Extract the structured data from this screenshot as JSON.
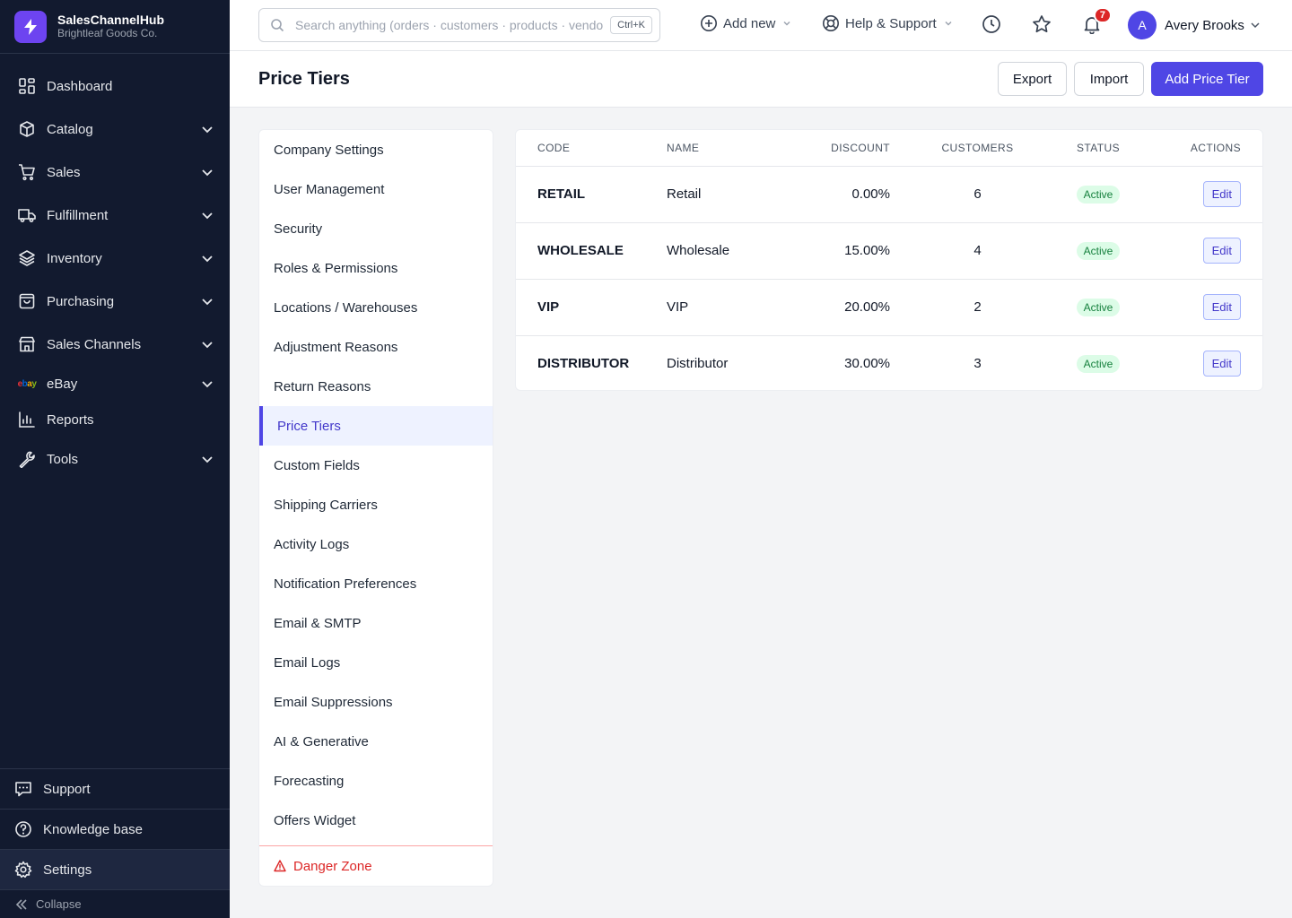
{
  "brand": {
    "name": "SalesChannelHub",
    "company": "Brightleaf Goods Co."
  },
  "sidebar": {
    "items": [
      {
        "label": "Dashboard",
        "icon": "dashboard-icon"
      },
      {
        "label": "Catalog",
        "icon": "box-icon"
      },
      {
        "label": "Sales",
        "icon": "cart-icon"
      },
      {
        "label": "Fulfillment",
        "icon": "truck-icon"
      },
      {
        "label": "Inventory",
        "icon": "layers-icon"
      },
      {
        "label": "Purchasing",
        "icon": "bag-icon"
      },
      {
        "label": "Sales Channels",
        "icon": "store-icon"
      },
      {
        "label": "eBay",
        "icon": "ebay-logo",
        "logo_text": [
          "e",
          "b",
          "a",
          "y"
        ]
      },
      {
        "label": "Reports",
        "icon": "bar-chart-icon"
      },
      {
        "label": "Tools",
        "icon": "wrench-icon"
      }
    ],
    "bottom": {
      "support": "Support",
      "knowledge_base": "Knowledge base",
      "settings": "Settings",
      "collapse": "Collapse"
    }
  },
  "topbar": {
    "search_placeholder": "Search anything (orders · customers · products · vendors)",
    "shortcut": "Ctrl+K",
    "add_new": "Add new",
    "help": "Help & Support",
    "notification_count": "7",
    "user_initial": "A",
    "user_name": "Avery Brooks"
  },
  "page": {
    "title": "Price Tiers",
    "export": "Export",
    "import": "Import",
    "add": "Add Price Tier"
  },
  "settings_nav": {
    "items": [
      "Company Settings",
      "User Management",
      "Security",
      "Roles & Permissions",
      "Locations / Warehouses",
      "Adjustment Reasons",
      "Return Reasons",
      "Price Tiers",
      "Custom Fields",
      "Shipping Carriers",
      "Activity Logs",
      "Notification Preferences",
      "Email & SMTP",
      "Email Logs",
      "Email Suppressions",
      "AI & Generative",
      "Forecasting",
      "Offers Widget"
    ],
    "active": "Price Tiers",
    "danger": "Danger Zone"
  },
  "table": {
    "headers": {
      "code": "CODE",
      "name": "NAME",
      "discount": "DISCOUNT",
      "customers": "CUSTOMERS",
      "status": "STATUS",
      "actions": "ACTIONS"
    },
    "rows": [
      {
        "code": "RETAIL",
        "name": "Retail",
        "discount": "0.00%",
        "customers": "6",
        "status": "Active",
        "action": "Edit"
      },
      {
        "code": "WHOLESALE",
        "name": "Wholesale",
        "discount": "15.00%",
        "customers": "4",
        "status": "Active",
        "action": "Edit"
      },
      {
        "code": "VIP",
        "name": "VIP",
        "discount": "20.00%",
        "customers": "2",
        "status": "Active",
        "action": "Edit"
      },
      {
        "code": "DISTRIBUTOR",
        "name": "Distributor",
        "discount": "30.00%",
        "customers": "3",
        "status": "Active",
        "action": "Edit"
      }
    ]
  },
  "colors": {
    "sidebar_bg": "#121a2f",
    "accent": "#4f46e5",
    "brand_logo": "#6d44f0",
    "active_badge": "#15803d",
    "danger": "#dc2626"
  }
}
